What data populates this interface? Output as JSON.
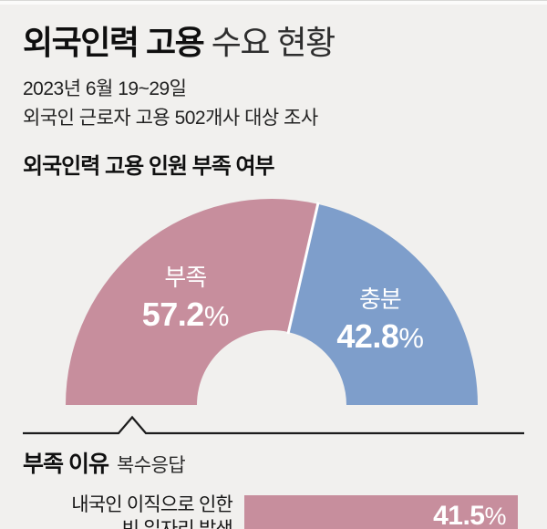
{
  "header": {
    "title_bold": "외국인력 고용",
    "title_rest": " 수요 현황",
    "subtitle_lines": [
      "2023년 6월 19~29일",
      "외국인 근로자 고용 502개사 대상 조사"
    ]
  },
  "sections": {
    "donut_title": "외국인력 고용 인원 부족 여부",
    "bars_title": "부족 이유",
    "bars_note": "복수응답"
  },
  "colors": {
    "background": "#f1f0ee",
    "shortage_pink": "#c78e9d",
    "sufficient_blue": "#7e9ecb",
    "divider_white": "#ffffff",
    "text_dark": "#1a1a1a"
  },
  "chart_data": [
    {
      "type": "pie",
      "variant": "half-donut",
      "title": "외국인력 고용 인원 부족 여부",
      "unit": "%",
      "slices": [
        {
          "label": "부족",
          "value": 57.2,
          "color": "#c78e9d"
        },
        {
          "label": "충분",
          "value": 42.8,
          "color": "#7e9ecb"
        }
      ]
    },
    {
      "type": "bar",
      "orientation": "horizontal",
      "title": "부족 이유",
      "note": "복수응답",
      "unit": "%",
      "bar_color": "#c78e9d",
      "categories": [
        [
          "내국인 이직으로 인한",
          "빈 일자리 발생"
        ]
      ],
      "values": [
        41.5
      ]
    }
  ]
}
